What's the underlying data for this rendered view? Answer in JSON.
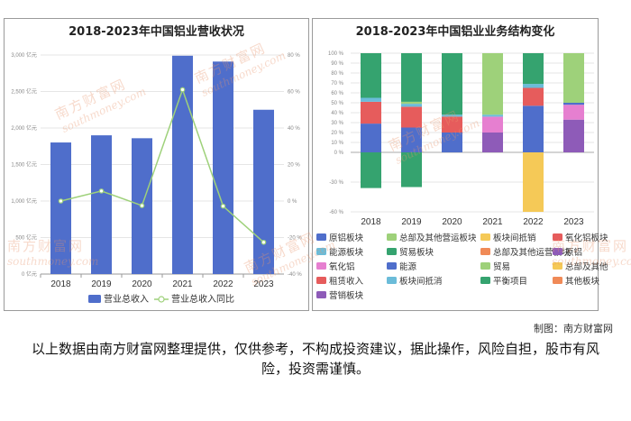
{
  "left_title": "2018-2023年中国铝业营收状况",
  "right_title": "2018-2023年中国铝业业务结构变化",
  "credit": "制图：南方财富网",
  "disclaimer": "以上数据由南方财富网整理提供，仅供参考，不构成投资建议，据此操作，风险自担，股市有风险，投资需谨慎。",
  "watermark": {
    "cn": "南方财富网",
    "en": "southmoney.com"
  },
  "chart_data": [
    {
      "type": "bar",
      "title": "2018-2023年中国铝业营收状况",
      "categories": [
        "2018",
        "2019",
        "2020",
        "2021",
        "2022",
        "2023"
      ],
      "left_axis": {
        "ticks": [
          "0 亿元",
          "500 亿元",
          "1,000 亿元",
          "1,500 亿元",
          "2,000 亿元",
          "2,500 亿元",
          "3,000 亿元"
        ],
        "range": [
          0,
          3000
        ]
      },
      "right_axis": {
        "ticks": [
          "-40 %",
          "-20 %",
          "0 %",
          "20 %",
          "40 %",
          "60 %",
          "80 %"
        ],
        "range": [
          -40,
          80
        ]
      },
      "series": [
        {
          "name": "营业总收入",
          "kind": "bar",
          "axis": "left",
          "color": "#4f6ecb",
          "values": [
            1802,
            1900,
            1860,
            2990,
            2910,
            2250
          ]
        },
        {
          "name": "营业总收入同比",
          "kind": "line",
          "axis": "right",
          "color": "#9ed17a",
          "values": [
            0,
            5.5,
            -2.5,
            61,
            -2.8,
            -22.6
          ]
        }
      ]
    },
    {
      "type": "bar",
      "stacked": true,
      "title": "2018-2023年中国铝业业务结构变化",
      "categories": [
        "2018",
        "2019",
        "2020",
        "2021",
        "2022",
        "2023"
      ],
      "y_ticks": [
        "-60 %",
        "-30 %",
        "0 %",
        "10 %",
        "20 %",
        "30 %",
        "40 %",
        "50 %",
        "60 %",
        "70 %",
        "80 %",
        "90 %",
        "100 %"
      ],
      "ylim": [
        -60,
        100
      ],
      "legend": [
        {
          "name": "原铝板块",
          "color": "#4f6ecb"
        },
        {
          "name": "总部及其他营运板块",
          "color": "#9ed17a"
        },
        {
          "name": "板块间抵销",
          "color": "#f5c957"
        },
        {
          "name": "氧化铝板块",
          "color": "#e65c5c"
        },
        {
          "name": "能源板块",
          "color": "#6bbcd9"
        },
        {
          "name": "贸易板块",
          "color": "#35a36f"
        },
        {
          "name": "总部及其他运营板块",
          "color": "#f08a57"
        },
        {
          "name": "原铝",
          "color": "#8e5bb8"
        },
        {
          "name": "氧化铝",
          "color": "#e67fd0"
        },
        {
          "name": "能源",
          "color": "#4f6ecb"
        },
        {
          "name": "贸易",
          "color": "#9ed17a"
        },
        {
          "name": "总部及其他",
          "color": "#f5c957"
        },
        {
          "name": "租赁收入",
          "color": "#e65c5c"
        },
        {
          "name": "板块间抵消",
          "color": "#6bbcd9"
        },
        {
          "name": "平衡项目",
          "color": "#35a36f"
        },
        {
          "name": "其他板块",
          "color": "#f08a57"
        },
        {
          "name": "营销板块",
          "color": "#8e5bb8"
        }
      ],
      "stacks": [
        {
          "category": "2018",
          "segments": [
            {
              "series": "原铝板块",
              "value": 29
            },
            {
              "series": "氧化铝板块",
              "value": 22
            },
            {
              "series": "能源板块",
              "value": 4
            },
            {
              "series": "贸易板块",
              "value": 45
            },
            {
              "series": "平衡项目",
              "value": -36
            }
          ]
        },
        {
          "category": "2019",
          "segments": [
            {
              "series": "原铝板块",
              "value": 25
            },
            {
              "series": "氧化铝板块",
              "value": 21
            },
            {
              "series": "能源板块",
              "value": 3
            },
            {
              "series": "总部及其他营运板块",
              "value": 2
            },
            {
              "series": "贸易板块",
              "value": 49
            },
            {
              "series": "平衡项目",
              "value": -35
            }
          ]
        },
        {
          "category": "2020",
          "segments": [
            {
              "series": "能源",
              "value": 20
            },
            {
              "series": "租赁收入",
              "value": 16
            },
            {
              "series": "板块间抵消",
              "value": 2
            },
            {
              "series": "平衡项目",
              "value": 62
            }
          ]
        },
        {
          "category": "2021",
          "segments": [
            {
              "series": "原铝",
              "value": 20
            },
            {
              "series": "氧化铝",
              "value": 16
            },
            {
              "series": "能源板块",
              "value": 2
            },
            {
              "series": "总部及其他营运板块",
              "value": 62
            }
          ]
        },
        {
          "category": "2022",
          "segments": [
            {
              "series": "原铝板块",
              "value": 47
            },
            {
              "series": "氧化铝板块",
              "value": 18
            },
            {
              "series": "能源板块",
              "value": 4
            },
            {
              "series": "贸易板块",
              "value": 31
            },
            {
              "series": "板块间抵销",
              "value": -60
            }
          ]
        },
        {
          "category": "2023",
          "segments": [
            {
              "series": "原铝",
              "value": 33
            },
            {
              "series": "氧化铝",
              "value": 15
            },
            {
              "series": "能源",
              "value": 2
            },
            {
              "series": "贸易",
              "value": 50
            }
          ]
        }
      ]
    }
  ]
}
